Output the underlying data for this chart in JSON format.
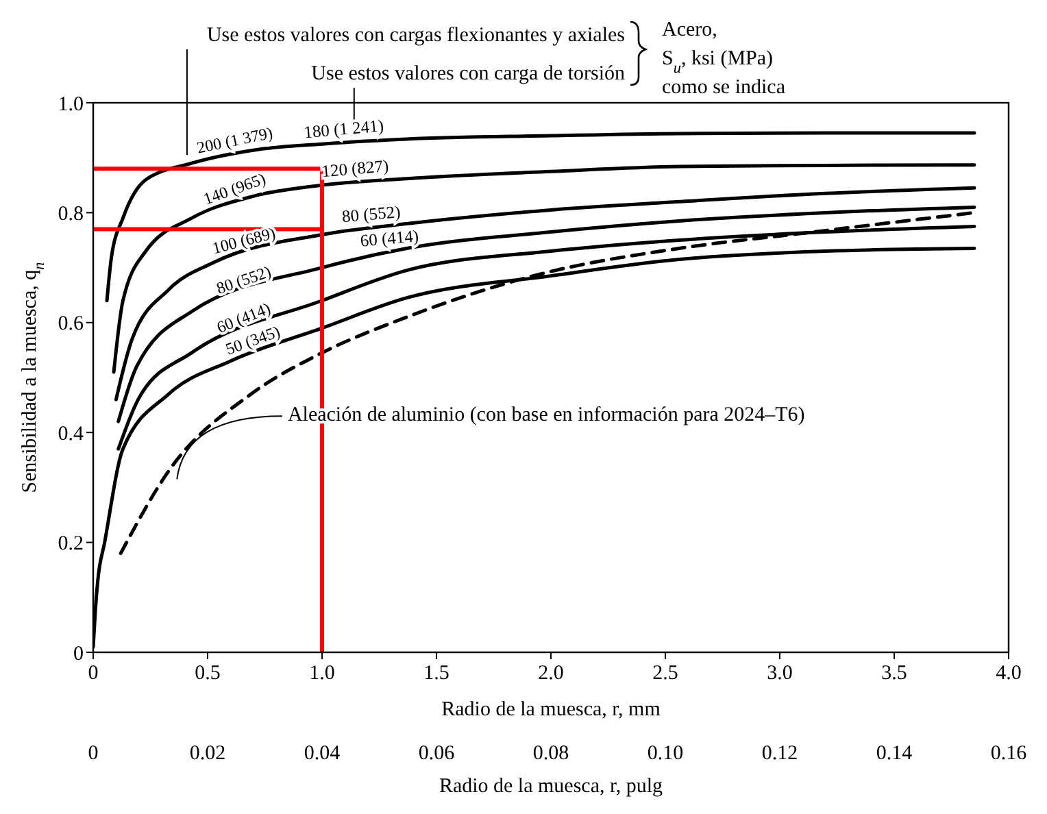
{
  "chart_data": {
    "type": "line",
    "xlabel": "Radio de la muesca, r, mm",
    "x2label": "Radio de la muesca, r, pulg",
    "ylabel": "Sensibilidad a la muesca, q$_{n}$",
    "xlim": [
      0,
      4.0
    ],
    "xticks": [
      0,
      0.5,
      {
        "value": 1,
        "label": "1.0"
      },
      1.5,
      {
        "value": 2,
        "label": "2.0"
      },
      2.5,
      {
        "value": 3,
        "label": "3.0"
      },
      3.5,
      {
        "value": 4,
        "label": "4.0"
      }
    ],
    "x2lim": [
      0,
      0.16
    ],
    "x2ticks": [
      0,
      0.02,
      0.04,
      0.06,
      0.08,
      {
        "value": 0.1,
        "label": "0.10"
      },
      0.12,
      0.14,
      0.16
    ],
    "ylim": [
      0,
      1.0
    ],
    "yticks": [
      0,
      0.2,
      0.4,
      0.6,
      0.8,
      {
        "value": 1,
        "label": "1.0"
      }
    ],
    "grid": false,
    "marker": "none",
    "series": [
      {
        "name": "200 (1 379)",
        "color": "#000000",
        "x": [
          0.06,
          0.08,
          0.13,
          0.23,
          0.43,
          0.72,
          1.0,
          1.37,
          2.0,
          2.56,
          3.2,
          3.85
        ],
        "values": [
          0.64,
          0.72,
          0.79,
          0.86,
          0.89,
          0.915,
          0.925,
          0.934,
          0.94,
          0.944,
          0.945,
          0.945
        ]
      },
      {
        "name": "140 (965)",
        "color": "#000000",
        "x": [
          0.09,
          0.13,
          0.23,
          0.43,
          0.7,
          1.0,
          1.37,
          2.0,
          2.56,
          3.2,
          3.85
        ],
        "values": [
          0.51,
          0.64,
          0.73,
          0.79,
          0.83,
          0.85,
          0.862,
          0.875,
          0.884,
          0.886,
          0.887
        ]
      },
      {
        "name": "100 (689)",
        "color": "#000000",
        "x": [
          0.1,
          0.17,
          0.33,
          0.53,
          1.0,
          1.37,
          2.0,
          2.56,
          3.2,
          3.85
        ],
        "values": [
          0.46,
          0.57,
          0.66,
          0.71,
          0.76,
          0.78,
          0.805,
          0.82,
          0.835,
          0.845
        ]
      },
      {
        "name": "80 (552)",
        "color": "#000000",
        "x": [
          0.11,
          0.19,
          0.43,
          1.0,
          1.37,
          2.0,
          2.56,
          3.2,
          3.85
        ],
        "values": [
          0.42,
          0.52,
          0.62,
          0.7,
          0.735,
          0.765,
          0.785,
          0.8,
          0.81
        ]
      },
      {
        "name": "60 (414)",
        "color": "#000000",
        "x": [
          0.11,
          0.21,
          0.43,
          1.0,
          1.37,
          2.0,
          2.56,
          3.2,
          3.85
        ],
        "values": [
          0.37,
          0.47,
          0.545,
          0.64,
          0.695,
          0.73,
          0.75,
          0.765,
          0.775
        ]
      },
      {
        "name": "50 (345)",
        "color": "#000000",
        "x": [
          0,
          0.01,
          0.02,
          0.05,
          0.13,
          0.33,
          0.6,
          1.0,
          1.37,
          2.0,
          2.56,
          3.2,
          3.85
        ],
        "values": [
          0.01,
          0.08,
          0.13,
          0.2,
          0.37,
          0.47,
          0.53,
          0.59,
          0.645,
          0.685,
          0.715,
          0.73,
          0.735
        ]
      },
      {
        "name": "Aleación de aluminio (con base en información para 2024–T6)",
        "color": "#000000",
        "line_style": "dashed",
        "x": [
          0.12,
          0.33,
          0.69,
          1.0,
          1.37,
          1.97,
          2.56,
          3.15,
          3.85
        ],
        "values": [
          0.18,
          0.33,
          0.47,
          0.545,
          0.61,
          0.69,
          0.735,
          0.765,
          0.8
        ]
      },
      {
        "color": "#ff0000",
        "x": [
          0,
          1,
          1
        ],
        "values": [
          0.88,
          0.88,
          0
        ]
      },
      {
        "color": "#ff0000",
        "x": [
          0,
          1
        ],
        "values": [
          0.77,
          0.77
        ]
      }
    ],
    "annotations": [
      "Use estos valores con cargas flexionantes y axiales",
      "Use estos valores con carga de torsión",
      "Acero,",
      "S$_{u}$, ksi (MPa)",
      "como se indica",
      {
        "text": "180 (1 241)",
        "x": 1.1,
        "y": 0.927
      },
      {
        "text": "120 (827)",
        "x": 1.15,
        "y": 0.855
      },
      {
        "text": "80 (552)",
        "x": 1.22,
        "y": 0.772
      },
      {
        "text": "60 (414)",
        "x": 1.3,
        "y": 0.728
      }
    ]
  }
}
